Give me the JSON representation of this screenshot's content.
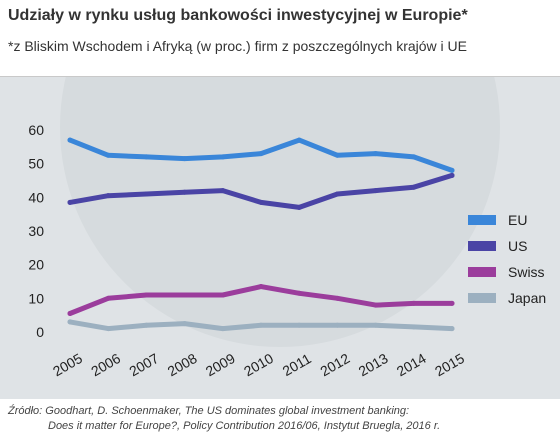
{
  "title": "Udziały w rynku usług bankowości inwestycyjnej w Europie*",
  "subtitle": "*z Bliskim Wschodem i Afryką (w proc.) firm z poszczególnych krajów i UE",
  "source_line1": "Źródło: Goodhart, D. Schoenmaker, The US dominates global investment banking:",
  "source_line2": "Does it matter for Europe?, Policy Contribution 2016/06, Instytut Bruegla, 2016 r.",
  "chart_data": {
    "type": "line",
    "title": "Udziały w rynku usług bankowości inwestycyjnej w Europie*",
    "subtitle": "*z Bliskim Wschodem i Afryką (w proc.) firm z poszczególnych krajów i UE",
    "xlabel": "",
    "ylabel": "",
    "x": [
      "2005",
      "2006",
      "2007",
      "2008",
      "2009",
      "2010",
      "2011",
      "2012",
      "2013",
      "2014",
      "2015"
    ],
    "yticks": [
      0,
      10,
      20,
      30,
      40,
      50,
      60
    ],
    "ylim": [
      0,
      62
    ],
    "grid": false,
    "legend_position": "right",
    "series": [
      {
        "name": "EU",
        "color": "#3a86d9",
        "values": [
          57,
          52.5,
          52,
          51.5,
          52,
          53,
          57,
          52.5,
          53,
          52,
          48
        ]
      },
      {
        "name": "US",
        "color": "#4a44a5",
        "values": [
          38.5,
          40.5,
          41,
          41.5,
          42,
          38.5,
          37,
          41,
          42,
          43,
          46.5
        ]
      },
      {
        "name": "Swiss",
        "color": "#9b3d9c",
        "values": [
          5.5,
          10,
          11,
          11,
          11,
          13.5,
          11.5,
          10,
          8,
          8.5,
          8.5
        ]
      },
      {
        "name": "Japan",
        "color": "#9cb0c0",
        "values": [
          3,
          1,
          2,
          2.5,
          1,
          2,
          2,
          2,
          2,
          1.5,
          1
        ]
      }
    ]
  }
}
